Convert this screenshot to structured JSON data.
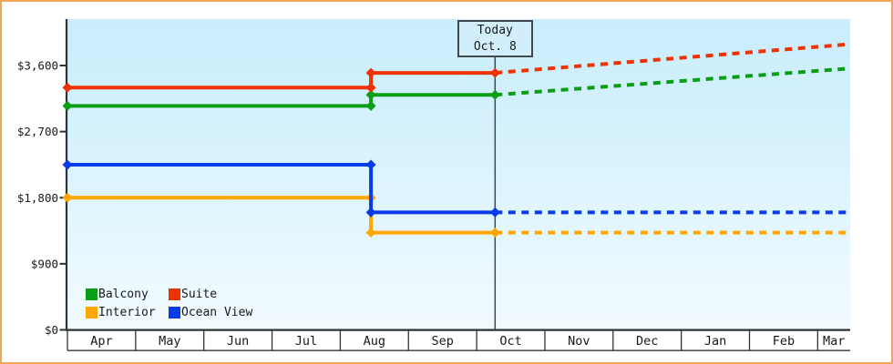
{
  "window": {
    "border_color": "#f0a75c",
    "background_color": "#ffffff"
  },
  "chart_data": {
    "type": "line",
    "title": "",
    "description": "Cruise cabin price history by category with dotted projection after today",
    "xlabel": "",
    "ylabel": "",
    "grid": false,
    "plot_background": {
      "top": "#c9edfc",
      "bottom": "#f2fbfe"
    },
    "ylim": [
      0,
      4200
    ],
    "y_ticks": [
      {
        "label": "$0",
        "value": 0
      },
      {
        "label": "$900",
        "value": 900
      },
      {
        "label": "$1,800",
        "value": 1800
      },
      {
        "label": "$2,700",
        "value": 2700
      },
      {
        "label": "$3,600",
        "value": 3600
      }
    ],
    "x_months": [
      "Apr",
      "May",
      "Jun",
      "Jul",
      "Aug",
      "Sep",
      "Oct",
      "Nov",
      "Dec",
      "Jan",
      "Feb",
      "Mar"
    ],
    "x_range_months": 11.47,
    "today": {
      "line1": "Today",
      "line2": "Oct. 8",
      "month_position": 6.27,
      "line_color": "#41474b"
    },
    "price_step_month_position": 4.45,
    "series": [
      {
        "name": "Balcony",
        "color": "#0a9e14",
        "solid": [
          [
            0,
            3050
          ],
          [
            4.45,
            3050
          ],
          [
            4.45,
            3200
          ],
          [
            6.27,
            3200
          ]
        ],
        "dashed": [
          [
            6.27,
            3200
          ],
          [
            11.47,
            3560
          ]
        ],
        "markers": [
          [
            0,
            3050
          ],
          [
            4.45,
            3050
          ],
          [
            4.45,
            3200
          ],
          [
            6.27,
            3200
          ]
        ]
      },
      {
        "name": "Suite",
        "color": "#ee3300",
        "solid": [
          [
            0,
            3300
          ],
          [
            4.45,
            3300
          ],
          [
            4.45,
            3500
          ],
          [
            6.27,
            3500
          ]
        ],
        "dashed": [
          [
            6.27,
            3500
          ],
          [
            11.47,
            3890
          ]
        ],
        "markers": [
          [
            0,
            3300
          ],
          [
            4.45,
            3300
          ],
          [
            4.45,
            3500
          ],
          [
            6.27,
            3500
          ]
        ]
      },
      {
        "name": "Interior",
        "color": "#ffa600",
        "solid": [
          [
            0,
            1800
          ],
          [
            4.45,
            1800
          ],
          [
            4.45,
            1325
          ],
          [
            6.27,
            1325
          ]
        ],
        "dashed": [
          [
            6.27,
            1325
          ],
          [
            11.47,
            1325
          ]
        ],
        "markers": [
          [
            0,
            1800
          ],
          [
            4.45,
            1800
          ],
          [
            4.45,
            1325
          ],
          [
            6.27,
            1325
          ]
        ]
      },
      {
        "name": "Ocean View",
        "color": "#0a3bea",
        "solid": [
          [
            0,
            2250
          ],
          [
            4.45,
            2250
          ],
          [
            4.45,
            1600
          ],
          [
            6.27,
            1600
          ]
        ],
        "dashed": [
          [
            6.27,
            1600
          ],
          [
            11.47,
            1600
          ]
        ],
        "markers": [
          [
            0,
            2250
          ],
          [
            4.45,
            2250
          ],
          [
            4.45,
            1600
          ],
          [
            6.27,
            1600
          ]
        ]
      }
    ],
    "legend": {
      "position": "bottom-left-inside",
      "rows": [
        [
          "Balcony",
          "Suite"
        ],
        [
          "Interior",
          "Ocean View"
        ]
      ]
    },
    "axis_color": "#2e3436",
    "text_color": "#17191a"
  }
}
